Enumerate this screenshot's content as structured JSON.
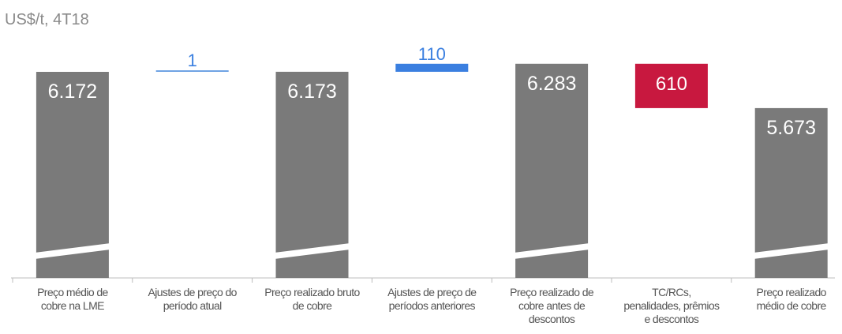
{
  "chart_data": {
    "type": "bar",
    "subtype": "waterfall",
    "title": "US$/t, 4T18",
    "categories": [
      [
        "Preço médio de",
        "cobre na LME"
      ],
      [
        "Ajustes de preço do",
        "período atual"
      ],
      [
        "Preço realizado bruto",
        "de cobre"
      ],
      [
        "Ajustes de preço de",
        "períodos anteriores"
      ],
      [
        "Preço realizado de",
        "cobre antes de",
        "descontos"
      ],
      [
        "TC/RCs,",
        "penalidades, prêmios",
        "e descontos"
      ],
      [
        "Preço realizado",
        "médio de cobre"
      ]
    ],
    "values": [
      6172,
      1,
      6173,
      110,
      6283,
      -610,
      5673
    ],
    "labels": [
      "6.172",
      "1",
      "6.173",
      "110",
      "6.283",
      "610",
      "5.673"
    ],
    "kinds": [
      "total",
      "delta",
      "total",
      "delta",
      "total",
      "delta",
      "total"
    ],
    "axis_break": true,
    "colors": {
      "total": "#7a7a7a",
      "increase_small": "#6fa3e4",
      "increase": "#3a7fe0",
      "decrease": "#c8183f",
      "axis": "#bcbcbc",
      "label_increase": "#3a7fe0",
      "total_label": "#ffffff",
      "decrease_label": "#ffffff"
    }
  }
}
